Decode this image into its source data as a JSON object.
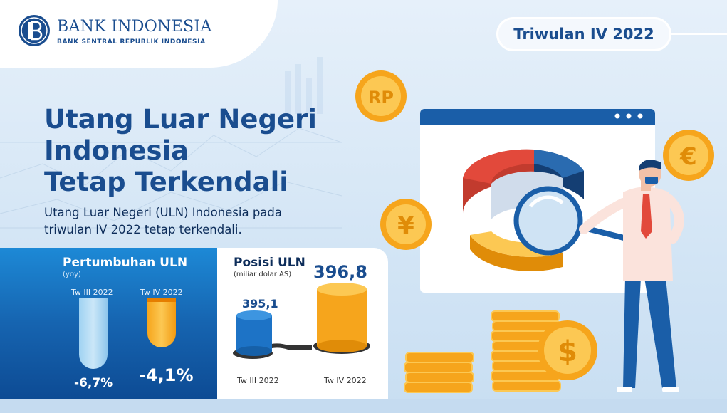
{
  "logo": {
    "name": "BANK INDONESIA",
    "subtitle": "BANK SENTRAL REPUBLIK INDONESIA"
  },
  "period": "Triwulan IV 2022",
  "headline": {
    "line1": "Utang Luar Negeri",
    "line2": "Indonesia",
    "line3": "Tetap Terkendali"
  },
  "subtext": {
    "line1": "Utang Luar Negeri (ULN) Indonesia pada",
    "line2": "triwulan IV 2022 tetap terkendali."
  },
  "growth": {
    "title": "Pertumbuhan ULN",
    "subtitle": "(yoy)",
    "items": [
      {
        "label": "Tw III 2022",
        "value": "-6,7%"
      },
      {
        "label": "Tw IV 2022",
        "value": "-4,1%"
      }
    ]
  },
  "position": {
    "title": "Posisi ULN",
    "subtitle": "(miliar dolar AS)",
    "items": [
      {
        "label": "Tw III 2022",
        "value": "395,1"
      },
      {
        "label": "Tw IV 2022",
        "value": "396,8"
      }
    ]
  },
  "coins": {
    "rp": "RP",
    "euro": "€",
    "yen": "¥",
    "dollar": "$"
  },
  "colors": {
    "brand": "#1a4d8f",
    "panel_blue": "#1664b0",
    "orange": "#f6a51c",
    "light_blue": "#9fd2f2"
  }
}
